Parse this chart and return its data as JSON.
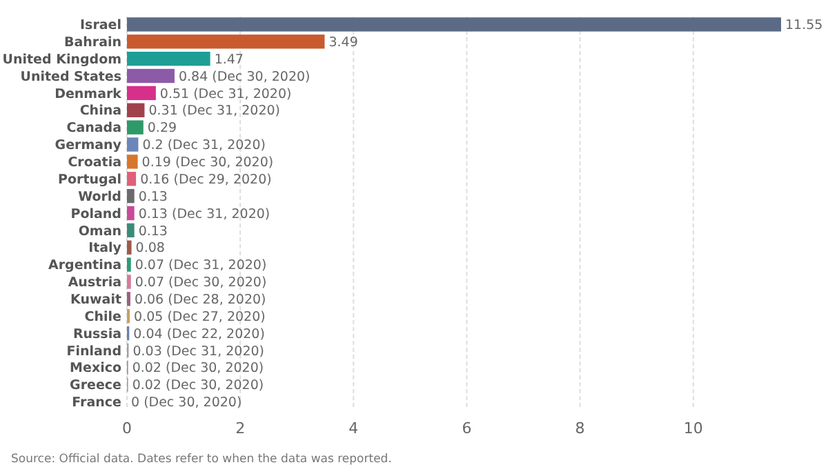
{
  "chart_data": {
    "type": "bar",
    "orientation": "horizontal",
    "categories": [
      "Israel",
      "Bahrain",
      "United Kingdom",
      "United States",
      "Denmark",
      "China",
      "Canada",
      "Germany",
      "Croatia",
      "Portugal",
      "World",
      "Poland",
      "Oman",
      "Italy",
      "Argentina",
      "Austria",
      "Kuwait",
      "Chile",
      "Russia",
      "Finland",
      "Mexico",
      "Greece",
      "France"
    ],
    "values": [
      11.55,
      3.49,
      1.47,
      0.84,
      0.51,
      0.31,
      0.29,
      0.2,
      0.19,
      0.16,
      0.13,
      0.13,
      0.13,
      0.08,
      0.07,
      0.07,
      0.06,
      0.05,
      0.04,
      0.03,
      0.02,
      0.02,
      0
    ],
    "colors": [
      "#5b6a85",
      "#c85a2e",
      "#1f9e96",
      "#8c5ba8",
      "#d6308a",
      "#a2414e",
      "#2e9a6a",
      "#6b86b8",
      "#d7762d",
      "#e0607a",
      "#6b6b6b",
      "#c94a9a",
      "#3a8c7a",
      "#a05a48",
      "#2e9a78",
      "#d67a9a",
      "#9a6080",
      "#c8a060",
      "#6b80b0",
      "#a0a0a0",
      "#c08080",
      "#a0a0a0",
      "#c0c0c0"
    ],
    "value_labels": [
      "11.55",
      "3.49",
      "1.47",
      "0.84 (Dec 30, 2020)",
      "0.51 (Dec 31, 2020)",
      "0.31 (Dec 31, 2020)",
      "0.29",
      "0.2 (Dec 31, 2020)",
      "0.19 (Dec 30, 2020)",
      "0.16 (Dec 29, 2020)",
      "0.13",
      "0.13 (Dec 31, 2020)",
      "0.13",
      "0.08",
      "0.07 (Dec 31, 2020)",
      "0.07 (Dec 30, 2020)",
      "0.06 (Dec 28, 2020)",
      "0.05 (Dec 27, 2020)",
      "0.04 (Dec 22, 2020)",
      "0.03 (Dec 31, 2020)",
      "0.02 (Dec 30, 2020)",
      "0.02 (Dec 30, 2020)",
      "0 (Dec 30, 2020)"
    ],
    "xlim": [
      0,
      11.55
    ],
    "xticks": [
      0,
      2,
      4,
      6,
      8,
      10
    ],
    "grid": "x",
    "annotations": [
      "Source: Official data. Dates refer to when the data was reported."
    ]
  }
}
